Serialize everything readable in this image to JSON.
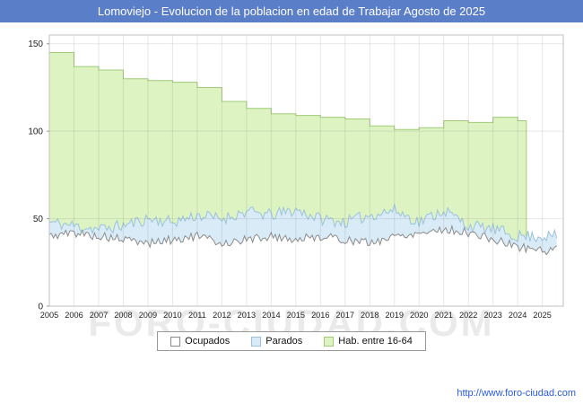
{
  "title": "Lomoviejo - Evolucion de la poblacion en edad de Trabajar Agosto de 2025",
  "watermark": "FORO-CIUDAD.COM",
  "footer": {
    "url": "http://www.foro-ciudad.com"
  },
  "colors": {
    "titlebar": "#5b7ec8",
    "link": "#2b5bd7",
    "grid": "rgba(120,120,120,0.18)",
    "plot_border": "#c0c0c0"
  },
  "legend": [
    {
      "label": "Ocupados",
      "fill": "#ffffff",
      "border": "#8a8a8a"
    },
    {
      "label": "Parados",
      "fill": "#d9ebf7",
      "border": "#9cc2de"
    },
    {
      "label": "Hab. entre 16-64",
      "fill": "#ddf3c2",
      "border": "#a0cc78"
    }
  ],
  "chart_data": {
    "type": "area",
    "title": "Lomoviejo - Evolucion de la poblacion en edad de Trabajar Agosto de 2025",
    "xlabel": "",
    "ylabel": "",
    "x_ticks": [
      2005,
      2006,
      2007,
      2008,
      2009,
      2010,
      2011,
      2012,
      2013,
      2014,
      2015,
      2016,
      2017,
      2018,
      2019,
      2020,
      2021,
      2022,
      2023,
      2024,
      2025
    ],
    "y_ticks": [
      0,
      50,
      100,
      150
    ],
    "ylim": [
      0,
      155
    ],
    "x_range": [
      2005,
      2025.85
    ],
    "grid": true,
    "legend_position": "bottom",
    "series": [
      {
        "name": "Hab. entre 16-64",
        "style": "step",
        "fill": "#ddf3c2",
        "stroke": "#a0cc78",
        "years": [
          2005,
          2006,
          2007,
          2008,
          2009,
          2010,
          2011,
          2012,
          2013,
          2014,
          2015,
          2016,
          2017,
          2018,
          2019,
          2020,
          2021,
          2022,
          2023,
          2024
        ],
        "values": [
          145,
          137,
          135,
          130,
          129,
          128,
          125,
          117,
          113,
          110,
          109,
          108,
          107,
          103,
          101,
          102,
          106,
          105,
          108,
          106
        ],
        "end_x": 2024.35,
        "drop_to_zero": true
      },
      {
        "name": "Parados",
        "style": "monthly",
        "fill": "#d9ebf7",
        "stroke": "#9cc2de",
        "years": [
          2005,
          2006,
          2007,
          2008,
          2009,
          2010,
          2011,
          2012,
          2013,
          2014,
          2015,
          2016,
          2017,
          2018,
          2019,
          2020,
          2021,
          2022,
          2023,
          2024,
          2025
        ],
        "values": [
          48,
          46,
          44,
          46,
          50,
          48,
          52,
          50,
          54,
          52,
          55,
          50,
          48,
          52,
          55,
          48,
          55,
          46,
          44,
          40,
          40
        ],
        "end_x": 2025.6,
        "jitter": 7,
        "seed": 11
      },
      {
        "name": "Ocupados",
        "style": "monthly",
        "fill": "#ffffff",
        "stroke": "#8c8c8c",
        "years": [
          2005,
          2006,
          2007,
          2008,
          2009,
          2010,
          2011,
          2012,
          2013,
          2014,
          2015,
          2016,
          2017,
          2018,
          2019,
          2020,
          2021,
          2022,
          2023,
          2024,
          2025
        ],
        "values": [
          40,
          42,
          40,
          38,
          36,
          38,
          40,
          36,
          38,
          40,
          38,
          40,
          38,
          36,
          40,
          42,
          44,
          42,
          38,
          34,
          32
        ],
        "end_x": 2025.6,
        "jitter": 5,
        "seed": 5
      }
    ]
  }
}
